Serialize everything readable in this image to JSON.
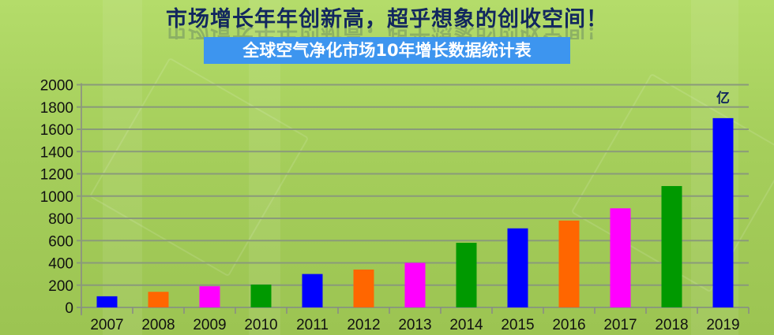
{
  "header": {
    "headline": "市场增长年年创新高，超乎想象的创收空间！",
    "subtitle": "全球空气净化市场10年增长数据统计表"
  },
  "colors": {
    "blue": "#0000ff",
    "orange": "#ff6600",
    "magenta": "#ff00ff",
    "green": "#009900",
    "headline": "#12275e",
    "subtitle_bg": "#3d95ef"
  },
  "chart_data": {
    "type": "bar",
    "title": "全球空气净化市场10年增长数据统计表",
    "unit_label": "亿",
    "categories": [
      "2007",
      "2008",
      "2009",
      "2010",
      "2011",
      "2012",
      "2013",
      "2014",
      "2015",
      "2016",
      "2017",
      "2018",
      "2019"
    ],
    "values": [
      100,
      140,
      190,
      205,
      300,
      340,
      400,
      580,
      710,
      780,
      890,
      1090,
      1700
    ],
    "bar_colors": [
      "#0000ff",
      "#ff6600",
      "#ff00ff",
      "#009900",
      "#0000ff",
      "#ff6600",
      "#ff00ff",
      "#009900",
      "#0000ff",
      "#ff6600",
      "#ff00ff",
      "#009900",
      "#0000ff"
    ],
    "yticks": [
      0,
      200,
      400,
      600,
      800,
      1000,
      1200,
      1400,
      1600,
      1800,
      2000
    ],
    "ylim": [
      0,
      2000
    ],
    "grid": true,
    "legend": "none"
  }
}
